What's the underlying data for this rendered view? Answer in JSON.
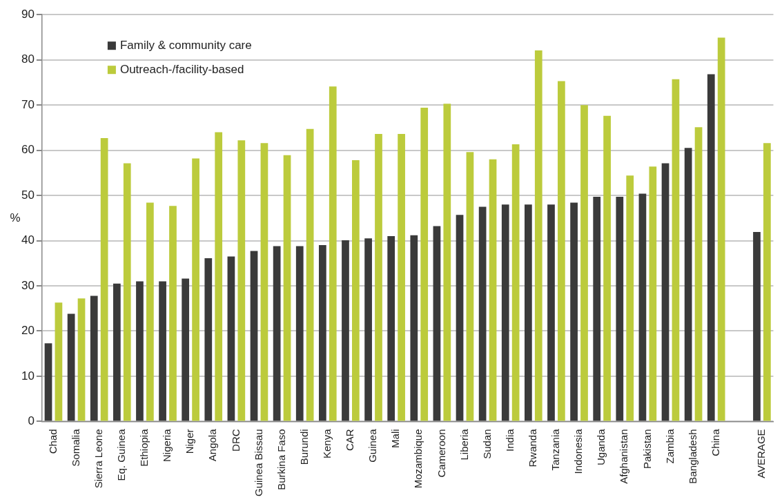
{
  "chart_data": {
    "type": "bar",
    "ylabel": "%",
    "categories": [
      "Chad",
      "Somalia",
      "Sierra Leone",
      "Eq. Guinea",
      "Ethiopia",
      "Nigeria",
      "Niger",
      "Angola",
      "DRC",
      "Guinea Bissau",
      "Burkina Faso",
      "Burundi",
      "Kenya",
      "CAR",
      "Guinea",
      "Mali",
      "Mozambique",
      "Cameroon",
      "Liberia",
      "Sudan",
      "India",
      "Rwanda",
      "Tanzania",
      "Indonesia",
      "Uganda",
      "Afghanistan",
      "Pakistan",
      "Zambia",
      "Bangladesh",
      "China",
      null,
      "AVERAGE"
    ],
    "series": [
      {
        "name": "Family & community care",
        "color": "#3a3a3a",
        "values": [
          17.3,
          23.8,
          27.8,
          30.5,
          31,
          31,
          31.6,
          36.1,
          36.5,
          37.7,
          38.8,
          38.8,
          39,
          40.1,
          40.5,
          41,
          41.2,
          43.2,
          45.7,
          47.5,
          48,
          48,
          48,
          48.4,
          49.7,
          49.7,
          50.4,
          57.1,
          60.5,
          76.8,
          null,
          41.9
        ]
      },
      {
        "name": "Outreach-/facility-based",
        "color": "#bccb3c",
        "values": [
          26.3,
          27.2,
          62.7,
          57.1,
          48.4,
          47.7,
          58.2,
          64,
          62.2,
          61.6,
          58.9,
          64.7,
          74.1,
          57.8,
          63.6,
          63.6,
          69.4,
          70.3,
          59.6,
          58,
          61.3,
          82.1,
          75.3,
          70,
          67.6,
          54.4,
          56.4,
          75.7,
          65.1,
          84.9,
          null,
          61.6
        ]
      }
    ],
    "ylim": [
      0,
      90
    ],
    "yticks": [
      0,
      10,
      20,
      30,
      40,
      50,
      60,
      70,
      80,
      90
    ],
    "grid": "y",
    "legend": "top left"
  }
}
